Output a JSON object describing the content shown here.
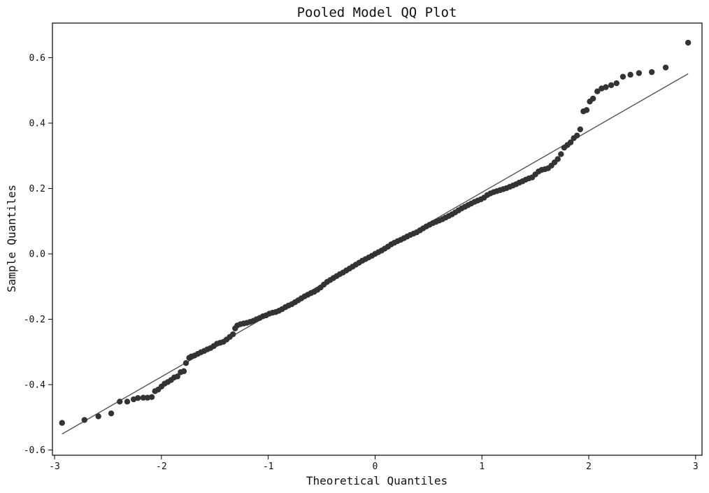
{
  "chart_data": {
    "type": "scatter",
    "title": "Pooled Model QQ Plot",
    "xlabel": "Theoretical Quantiles",
    "ylabel": "Sample Quantiles",
    "xlim": [
      -3.02,
      3.06
    ],
    "ylim": [
      -0.616,
      0.706
    ],
    "xticks": [
      -3,
      -2,
      -1,
      0,
      1,
      2,
      3
    ],
    "xtick_labels": [
      "-3",
      "-2",
      "-1",
      "0",
      "1",
      "2",
      "3"
    ],
    "yticks": [
      -0.6,
      -0.4,
      -0.2,
      0.0,
      0.2,
      0.4,
      0.6
    ],
    "ytick_labels": [
      "-0.6",
      "-0.4",
      "-0.2",
      "0.0",
      "0.2",
      "0.4",
      "0.6"
    ],
    "grid": false,
    "marker_color": "#333333",
    "line_color": "#555555",
    "reference_line": {
      "x": [
        -2.93,
        2.93
      ],
      "y": [
        -0.551,
        0.551
      ]
    },
    "series": [
      {
        "points": [
          [
            -2.93,
            -0.517
          ],
          [
            -2.72,
            -0.508
          ],
          [
            -2.59,
            -0.497
          ],
          [
            -2.47,
            -0.488
          ],
          [
            -2.39,
            -0.452
          ],
          [
            -2.32,
            -0.452
          ],
          [
            -2.26,
            -0.445
          ],
          [
            -2.22,
            -0.441
          ],
          [
            -2.17,
            -0.44
          ],
          [
            -2.13,
            -0.44
          ],
          [
            -2.09,
            -0.438
          ],
          [
            -2.06,
            -0.42
          ],
          [
            -2.03,
            -0.415
          ],
          [
            -2.0,
            -0.406
          ],
          [
            -1.97,
            -0.397
          ],
          [
            -1.94,
            -0.392
          ],
          [
            -1.91,
            -0.386
          ],
          [
            -1.88,
            -0.378
          ],
          [
            -1.85,
            -0.375
          ],
          [
            -1.82,
            -0.362
          ],
          [
            -1.79,
            -0.359
          ],
          [
            -1.77,
            -0.334
          ],
          [
            -1.74,
            -0.318
          ],
          [
            -1.72,
            -0.314
          ],
          [
            -1.69,
            -0.311
          ],
          [
            -1.66,
            -0.306
          ],
          [
            -1.63,
            -0.301
          ],
          [
            -1.6,
            -0.297
          ],
          [
            -1.57,
            -0.292
          ],
          [
            -1.54,
            -0.288
          ],
          [
            -1.51,
            -0.282
          ],
          [
            -1.48,
            -0.275
          ],
          [
            -1.45,
            -0.272
          ],
          [
            -1.42,
            -0.269
          ],
          [
            -1.39,
            -0.262
          ],
          [
            -1.36,
            -0.254
          ],
          [
            -1.33,
            -0.246
          ],
          [
            -1.31,
            -0.228
          ],
          [
            -1.29,
            -0.219
          ],
          [
            -1.26,
            -0.215
          ],
          [
            -1.23,
            -0.213
          ],
          [
            -1.2,
            -0.211
          ],
          [
            -1.17,
            -0.208
          ],
          [
            -1.14,
            -0.205
          ],
          [
            -1.11,
            -0.2
          ],
          [
            -1.08,
            -0.196
          ],
          [
            -1.05,
            -0.191
          ],
          [
            -1.02,
            -0.188
          ],
          [
            -0.99,
            -0.183
          ],
          [
            -0.96,
            -0.18
          ],
          [
            -0.93,
            -0.178
          ],
          [
            -0.9,
            -0.174
          ],
          [
            -0.87,
            -0.169
          ],
          [
            -0.84,
            -0.163
          ],
          [
            -0.81,
            -0.158
          ],
          [
            -0.78,
            -0.154
          ],
          [
            -0.75,
            -0.148
          ],
          [
            -0.72,
            -0.142
          ],
          [
            -0.69,
            -0.136
          ],
          [
            -0.66,
            -0.13
          ],
          [
            -0.63,
            -0.125
          ],
          [
            -0.6,
            -0.12
          ],
          [
            -0.57,
            -0.116
          ],
          [
            -0.54,
            -0.11
          ],
          [
            -0.51,
            -0.103
          ],
          [
            -0.48,
            -0.094
          ],
          [
            -0.45,
            -0.086
          ],
          [
            -0.42,
            -0.08
          ],
          [
            -0.39,
            -0.074
          ],
          [
            -0.36,
            -0.068
          ],
          [
            -0.33,
            -0.062
          ],
          [
            -0.3,
            -0.057
          ],
          [
            -0.27,
            -0.051
          ],
          [
            -0.24,
            -0.045
          ],
          [
            -0.21,
            -0.039
          ],
          [
            -0.18,
            -0.033
          ],
          [
            -0.15,
            -0.027
          ],
          [
            -0.12,
            -0.021
          ],
          [
            -0.09,
            -0.016
          ],
          [
            -0.06,
            -0.011
          ],
          [
            -0.03,
            -0.006
          ],
          [
            0.0,
            0.0
          ],
          [
            0.03,
            0.005
          ],
          [
            0.06,
            0.01
          ],
          [
            0.09,
            0.016
          ],
          [
            0.12,
            0.022
          ],
          [
            0.15,
            0.029
          ],
          [
            0.18,
            0.034
          ],
          [
            0.21,
            0.039
          ],
          [
            0.24,
            0.043
          ],
          [
            0.27,
            0.048
          ],
          [
            0.3,
            0.053
          ],
          [
            0.33,
            0.058
          ],
          [
            0.36,
            0.062
          ],
          [
            0.39,
            0.066
          ],
          [
            0.42,
            0.072
          ],
          [
            0.45,
            0.078
          ],
          [
            0.48,
            0.084
          ],
          [
            0.51,
            0.089
          ],
          [
            0.54,
            0.094
          ],
          [
            0.57,
            0.098
          ],
          [
            0.6,
            0.102
          ],
          [
            0.63,
            0.106
          ],
          [
            0.66,
            0.111
          ],
          [
            0.69,
            0.116
          ],
          [
            0.72,
            0.121
          ],
          [
            0.75,
            0.127
          ],
          [
            0.78,
            0.133
          ],
          [
            0.81,
            0.139
          ],
          [
            0.84,
            0.144
          ],
          [
            0.87,
            0.149
          ],
          [
            0.9,
            0.154
          ],
          [
            0.93,
            0.159
          ],
          [
            0.96,
            0.163
          ],
          [
            0.99,
            0.167
          ],
          [
            1.02,
            0.172
          ],
          [
            1.05,
            0.18
          ],
          [
            1.08,
            0.185
          ],
          [
            1.11,
            0.189
          ],
          [
            1.14,
            0.192
          ],
          [
            1.17,
            0.195
          ],
          [
            1.2,
            0.198
          ],
          [
            1.23,
            0.201
          ],
          [
            1.26,
            0.205
          ],
          [
            1.29,
            0.209
          ],
          [
            1.32,
            0.213
          ],
          [
            1.35,
            0.218
          ],
          [
            1.38,
            0.222
          ],
          [
            1.41,
            0.227
          ],
          [
            1.44,
            0.231
          ],
          [
            1.47,
            0.234
          ],
          [
            1.5,
            0.243
          ],
          [
            1.53,
            0.252
          ],
          [
            1.56,
            0.257
          ],
          [
            1.59,
            0.259
          ],
          [
            1.62,
            0.262
          ],
          [
            1.65,
            0.27
          ],
          [
            1.68,
            0.28
          ],
          [
            1.71,
            0.29
          ],
          [
            1.74,
            0.305
          ],
          [
            1.77,
            0.325
          ],
          [
            1.8,
            0.333
          ],
          [
            1.83,
            0.341
          ],
          [
            1.86,
            0.354
          ],
          [
            1.89,
            0.362
          ],
          [
            1.92,
            0.381
          ],
          [
            1.95,
            0.436
          ],
          [
            1.98,
            0.44
          ],
          [
            2.01,
            0.466
          ],
          [
            2.04,
            0.475
          ],
          [
            2.08,
            0.497
          ],
          [
            2.12,
            0.506
          ],
          [
            2.16,
            0.51
          ],
          [
            2.21,
            0.516
          ],
          [
            2.26,
            0.522
          ],
          [
            2.32,
            0.542
          ],
          [
            2.39,
            0.548
          ],
          [
            2.47,
            0.553
          ],
          [
            2.59,
            0.556
          ],
          [
            2.72,
            0.57
          ],
          [
            2.93,
            0.646
          ]
        ]
      }
    ]
  }
}
